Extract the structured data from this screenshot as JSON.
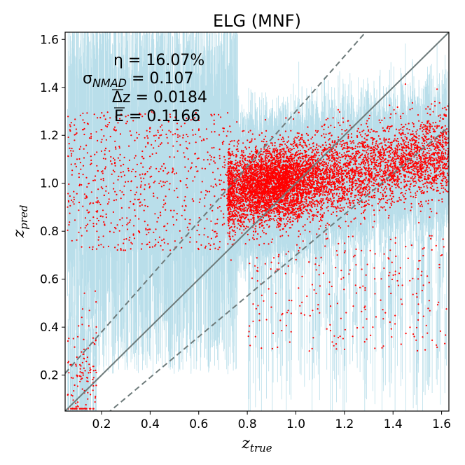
{
  "chart_data": {
    "type": "scatter",
    "title": "ELG (MNF)",
    "xlabel": {
      "symbol": "z",
      "subscript": "true"
    },
    "ylabel": {
      "symbol": "z",
      "subscript": "pred"
    },
    "xlim": [
      0.05,
      1.63
    ],
    "ylim": [
      0.05,
      1.63
    ],
    "xticks": [
      0.2,
      0.4,
      0.6,
      0.8,
      1.0,
      1.2,
      1.4,
      1.6
    ],
    "xtick_labels": [
      "0.2",
      "0.4",
      "0.6",
      "0.8",
      "1.0",
      "1.2",
      "1.4",
      "1.6"
    ],
    "yticks": [
      0.2,
      0.4,
      0.6,
      0.8,
      1.0,
      1.2,
      1.4,
      1.6
    ],
    "ytick_labels": [
      "0.2",
      "0.4",
      "0.6",
      "0.8",
      "1.0",
      "1.2",
      "1.4",
      "1.6"
    ],
    "annotations": [
      {
        "name": "eta",
        "text": "η = 16.07%"
      },
      {
        "name": "sigma-nmad",
        "text": "σ_NMAD = 0.107"
      },
      {
        "name": "delta-z",
        "text": "Δz = 0.0184"
      },
      {
        "name": "e-bar",
        "text": "E = 0.1166"
      }
    ],
    "reference_lines": [
      {
        "name": "identity-line",
        "type": "solid",
        "slope": 1.0,
        "offset": 0.0
      },
      {
        "name": "outlier-upper",
        "type": "dashed",
        "relation": "z_pred = z_true + 0.15 (1 + z_true)"
      },
      {
        "name": "outlier-lower",
        "type": "dashed",
        "relation": "z_pred = z_true - 0.15 (1 + z_true)"
      }
    ],
    "series": [
      {
        "name": "predictions",
        "marker_color": "#ff0000",
        "errorbar_color": "#add8e6",
        "description_of_distribution": "dense cluster centered near z_true≈0.92, z_pred≈1.0 extending to z_true≈1.63, z_pred≈1.15; sparse outliers at low z_true with z_pred 0.7–1.3"
      }
    ]
  },
  "colors": {
    "points": "#ff0000",
    "errorbars": "#add8e6",
    "lines": "#6e7b7b",
    "axes": "#000000"
  }
}
